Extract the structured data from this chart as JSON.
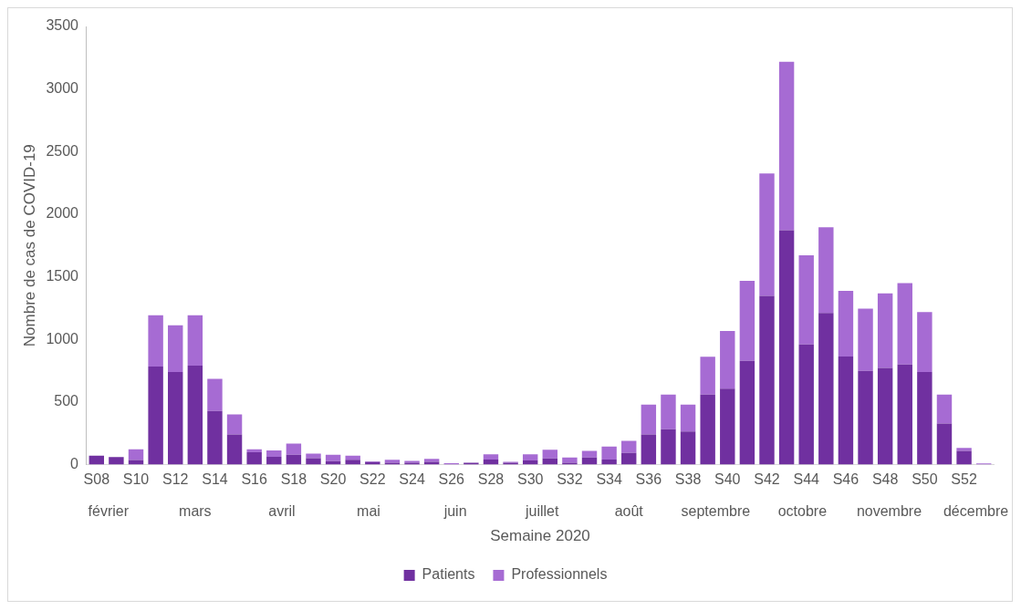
{
  "chart_data": {
    "type": "bar",
    "stacked": true,
    "xlabel": "Semaine 2020",
    "ylabel": "Nombre de cas de COVID-19",
    "categories": [
      "S08",
      null,
      "S10",
      null,
      "S12",
      null,
      "S14",
      null,
      "S16",
      null,
      "S18",
      null,
      "S20",
      null,
      "S22",
      null,
      "S24",
      null,
      "S26",
      null,
      "S28",
      null,
      "S30",
      null,
      "S32",
      null,
      "S34",
      null,
      "S36",
      null,
      "S38",
      null,
      "S40",
      null,
      "S42",
      null,
      "S44",
      null,
      "S46",
      null,
      "S48",
      null,
      "S50",
      null,
      "S52",
      null
    ],
    "series": [
      {
        "name": "Patients",
        "color": "#7030a0",
        "values": [
          70,
          60,
          35,
          782,
          739,
          790,
          427,
          239,
          97,
          62,
          78,
          51,
          27,
          38,
          20,
          13,
          13,
          21,
          0,
          13,
          40,
          13,
          32,
          48,
          13,
          56,
          40,
          93,
          239,
          282,
          263,
          559,
          605,
          828,
          1347,
          1871,
          960,
          1210,
          863,
          747,
          771,
          798,
          739,
          328,
          108,
          0
        ]
      },
      {
        "name": "Professionnels",
        "color": "#a66bd3",
        "values": [
          0,
          0,
          86,
          411,
          374,
          403,
          258,
          161,
          24,
          51,
          89,
          35,
          51,
          32,
          4,
          24,
          16,
          24,
          11,
          0,
          42,
          8,
          50,
          69,
          43,
          53,
          103,
          95,
          239,
          277,
          215,
          301,
          462,
          640,
          978,
          1347,
          712,
          685,
          524,
          498,
          597,
          651,
          479,
          231,
          24,
          8
        ]
      }
    ],
    "ylim": [
      0,
      3500
    ],
    "yticks": [
      0,
      500,
      1000,
      1500,
      2000,
      2500,
      3000,
      3500
    ],
    "grid": false,
    "legend": "bottom",
    "annotations": [
      "février",
      "mars",
      "avril",
      "mai",
      "juin",
      "juillet",
      "août",
      "septembre",
      "octobre",
      "novembre",
      "décembre"
    ]
  }
}
